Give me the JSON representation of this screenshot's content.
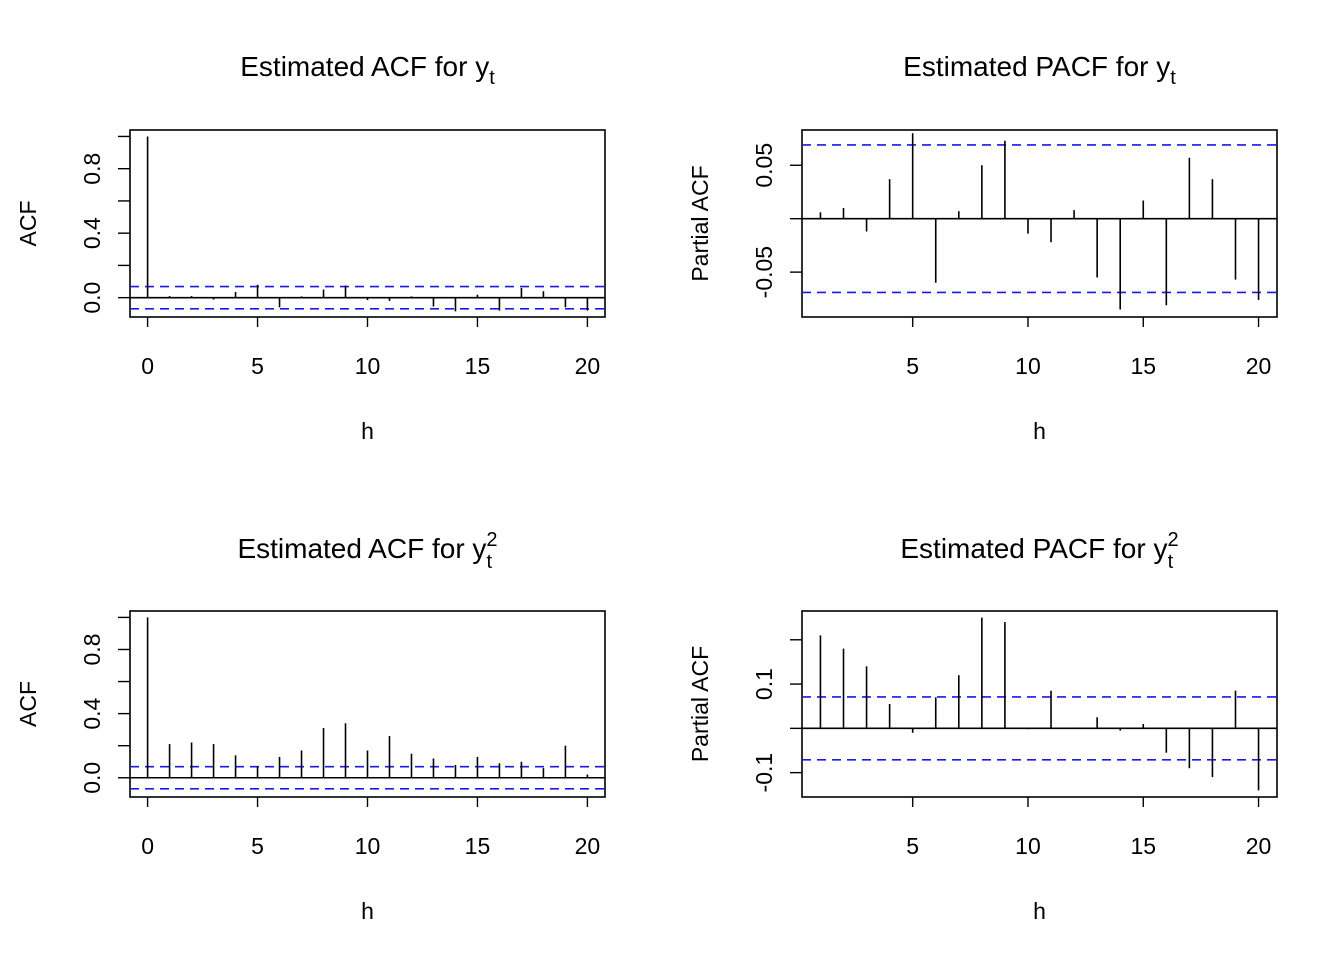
{
  "colors": {
    "ci_line": "#1a1ae6",
    "spike": "#000000"
  },
  "chart_data": [
    {
      "type": "bar",
      "title_main": "Estimated ACF for y",
      "title_sub": "t",
      "title_sup": "",
      "xlabel": "h",
      "ylabel": "ACF",
      "x": [
        0,
        1,
        2,
        3,
        4,
        5,
        6,
        7,
        8,
        9,
        10,
        11,
        12,
        13,
        14,
        15,
        16,
        17,
        18,
        19,
        20
      ],
      "values": [
        1.0,
        0.01,
        0.01,
        -0.012,
        0.035,
        0.08,
        -0.06,
        0.008,
        0.05,
        0.075,
        -0.015,
        -0.02,
        0.008,
        -0.055,
        -0.085,
        0.018,
        -0.08,
        0.06,
        0.04,
        -0.06,
        -0.08
      ],
      "ci": 0.069,
      "xlim": [
        -0.8,
        20.8
      ],
      "ylim": [
        -0.12,
        1.04
      ],
      "xticks": [
        0,
        5,
        10,
        15,
        20
      ],
      "xtick_labels": [
        "0",
        "5",
        "10",
        "15",
        "20"
      ],
      "yticks": [
        0,
        0.2,
        0.4,
        0.6,
        0.8,
        1.0
      ],
      "yticks_labeled": [
        0,
        0.4,
        0.8
      ],
      "ytick_labels": [
        "0.0",
        "0.4",
        "0.8"
      ],
      "grid": false
    },
    {
      "type": "bar",
      "title_main": "Estimated PACF for y",
      "title_sub": "t",
      "title_sup": "",
      "xlabel": "h",
      "ylabel": "Partial ACF",
      "x": [
        1,
        2,
        3,
        4,
        5,
        6,
        7,
        8,
        9,
        10,
        11,
        12,
        13,
        14,
        15,
        16,
        17,
        18,
        19,
        20
      ],
      "values": [
        0.006,
        0.01,
        -0.012,
        0.037,
        0.08,
        -0.06,
        0.007,
        0.05,
        0.073,
        -0.014,
        -0.022,
        0.008,
        -0.055,
        -0.085,
        0.017,
        -0.081,
        0.057,
        0.037,
        -0.057,
        -0.076
      ],
      "ci": 0.069,
      "xlim": [
        0.2,
        20.8
      ],
      "ylim": [
        -0.092,
        0.083
      ],
      "xticks": [
        5,
        10,
        15,
        20
      ],
      "xtick_labels": [
        "5",
        "10",
        "15",
        "20"
      ],
      "yticks": [
        -0.05,
        0,
        0.05
      ],
      "yticks_labeled": [
        -0.05,
        0.05
      ],
      "ytick_labels": [
        "-0.05",
        "0.05"
      ],
      "grid": false
    },
    {
      "type": "bar",
      "title_main": "Estimated ACF for y",
      "title_sub": "t",
      "title_sup": "2",
      "xlabel": "h",
      "ylabel": "ACF",
      "x": [
        0,
        1,
        2,
        3,
        4,
        5,
        6,
        7,
        8,
        9,
        10,
        11,
        12,
        13,
        14,
        15,
        16,
        17,
        18,
        19,
        20
      ],
      "values": [
        1.0,
        0.21,
        0.22,
        0.21,
        0.14,
        0.07,
        0.13,
        0.17,
        0.31,
        0.34,
        0.17,
        0.26,
        0.15,
        0.12,
        0.08,
        0.13,
        0.09,
        0.1,
        0.06,
        0.2,
        0.02
      ],
      "ci": 0.069,
      "xlim": [
        -0.8,
        20.8
      ],
      "ylim": [
        -0.12,
        1.04
      ],
      "xticks": [
        0,
        5,
        10,
        15,
        20
      ],
      "xtick_labels": [
        "0",
        "5",
        "10",
        "15",
        "20"
      ],
      "yticks": [
        0,
        0.2,
        0.4,
        0.6,
        0.8,
        1.0
      ],
      "yticks_labeled": [
        0,
        0.4,
        0.8
      ],
      "ytick_labels": [
        "0.0",
        "0.4",
        "0.8"
      ],
      "grid": false
    },
    {
      "type": "bar",
      "title_main": "Estimated PACF for y",
      "title_sub": "t",
      "title_sup": "2",
      "xlabel": "h",
      "ylabel": "Partial ACF",
      "x": [
        1,
        2,
        3,
        4,
        5,
        6,
        7,
        8,
        9,
        10,
        11,
        12,
        13,
        14,
        15,
        16,
        17,
        18,
        19,
        20
      ],
      "values": [
        0.21,
        0.18,
        0.14,
        0.055,
        -0.01,
        0.07,
        0.12,
        0.25,
        0.24,
        -0.002,
        0.085,
        0.002,
        0.025,
        -0.005,
        0.01,
        -0.055,
        -0.09,
        -0.11,
        0.085,
        -0.14
      ],
      "ci": 0.071,
      "xlim": [
        0.2,
        20.8
      ],
      "ylim": [
        -0.155,
        0.265
      ],
      "xticks": [
        5,
        10,
        15,
        20
      ],
      "xtick_labels": [
        "5",
        "10",
        "15",
        "20"
      ],
      "yticks": [
        -0.1,
        0,
        0.1,
        0.2
      ],
      "yticks_labeled": [
        -0.1,
        0.1
      ],
      "ytick_labels": [
        "-0.1",
        "0.1"
      ],
      "grid": false
    }
  ]
}
